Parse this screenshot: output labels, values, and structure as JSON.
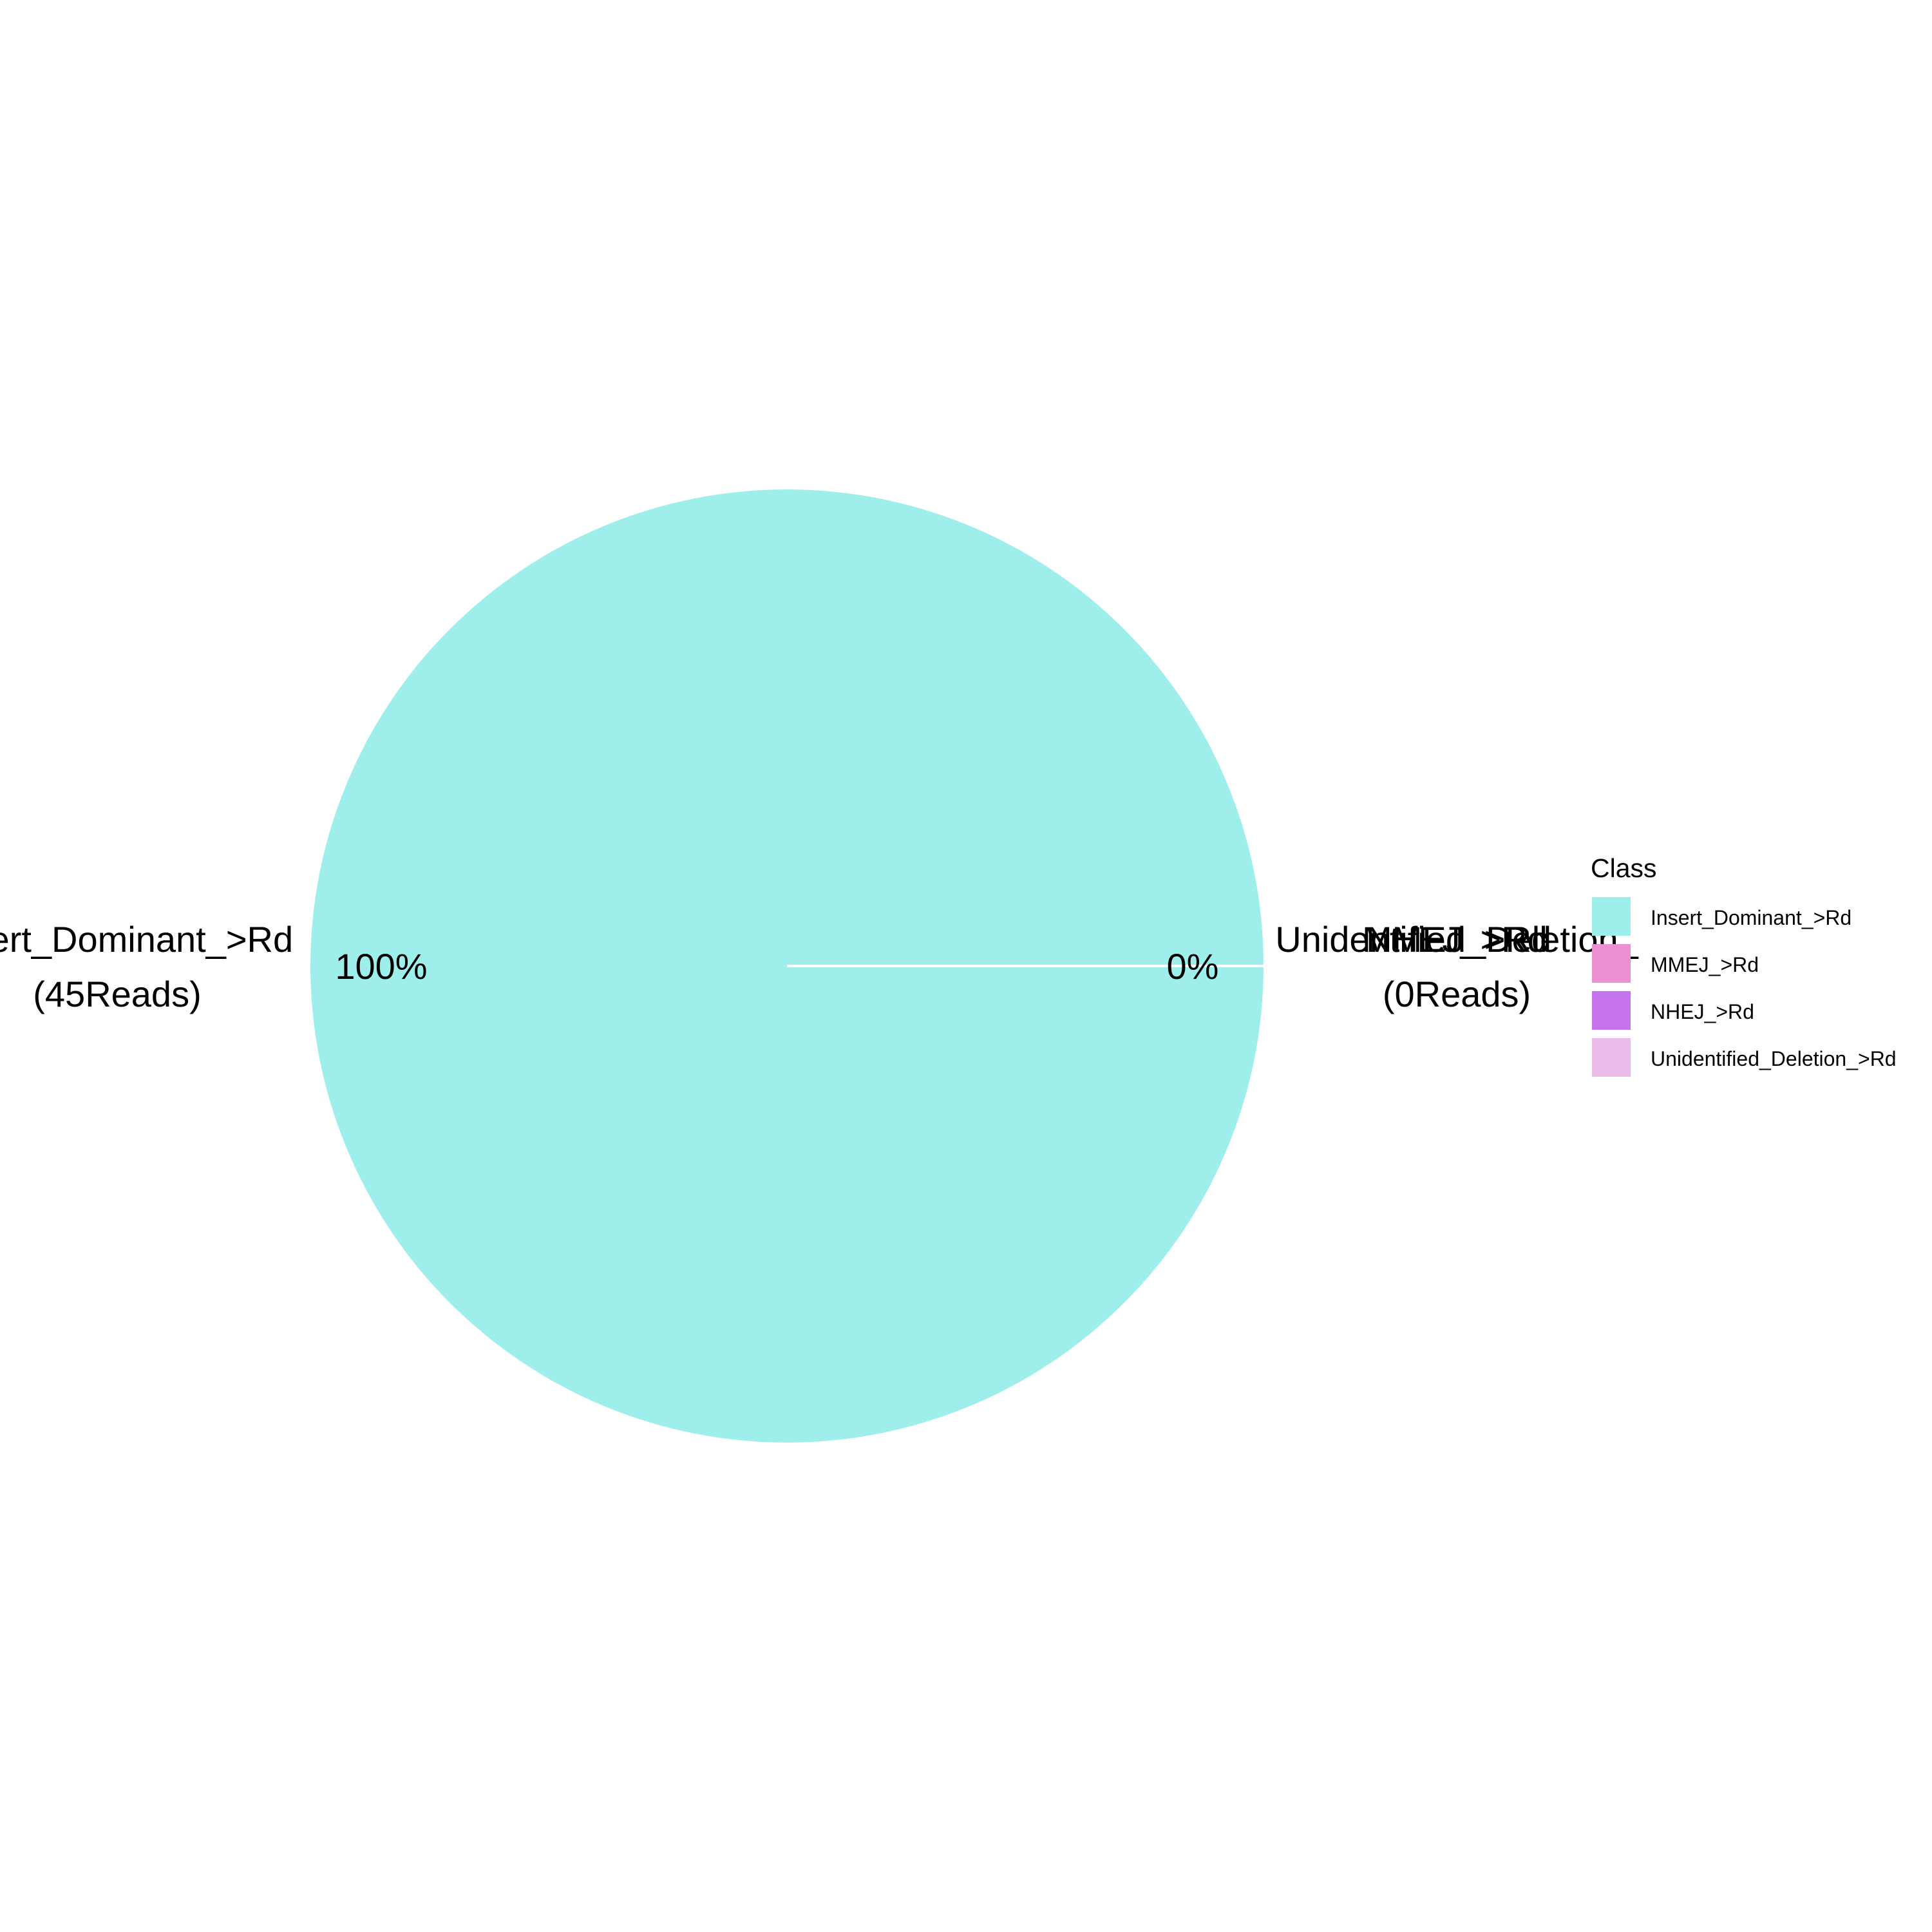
{
  "chart_data": {
    "type": "pie",
    "title": "",
    "legend": {
      "title": "Class",
      "position": "right"
    },
    "slices": [
      {
        "name": "Insert_Dominant_>Rd",
        "value": 45,
        "percent_label": "100%",
        "reads_label": "(45Reads)",
        "label": "Insert_Dominant_>Rd",
        "color": "#9EEFEC"
      },
      {
        "name": "MMEJ_>Rd",
        "value": 0,
        "percent_label": "",
        "reads_label": "",
        "label": "MMEJ_>Rd",
        "color": "#EB8FD3"
      },
      {
        "name": "NHEJ_>Rd",
        "value": 0,
        "percent_label": "",
        "reads_label": "",
        "label": "NHEJ_>Rd",
        "color": "#C673EE"
      },
      {
        "name": "Unidentified_Deletion_>Rd",
        "value": 0,
        "percent_label": "0%",
        "reads_label": "(0Reads)",
        "label": "Unidentified_Deletion_",
        "color": "#EBBBEA"
      }
    ]
  }
}
